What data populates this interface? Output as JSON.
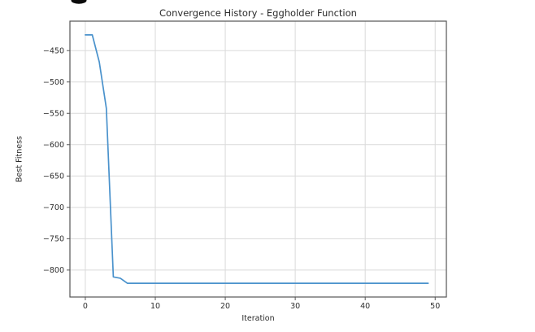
{
  "artifact": {
    "description": "black fragment of cut-off text at top edge",
    "color": "#0b0b0b"
  },
  "chart_data": {
    "type": "line",
    "title": "Convergence History - Eggholder Function",
    "xlabel": "Iteration",
    "ylabel": "Best Fitness",
    "x": [
      0,
      1,
      2,
      3,
      4,
      5,
      6,
      7,
      8,
      9,
      10,
      11,
      12,
      13,
      14,
      15,
      16,
      17,
      18,
      19,
      20,
      21,
      22,
      23,
      24,
      25,
      26,
      27,
      28,
      29,
      30,
      31,
      32,
      33,
      34,
      35,
      36,
      37,
      38,
      39,
      40,
      41,
      42,
      43,
      44,
      45,
      46,
      47,
      48,
      49
    ],
    "values": [
      -425,
      -425,
      -468,
      -542,
      -811,
      -813,
      -821,
      -821,
      -821,
      -821,
      -821,
      -821,
      -821,
      -821,
      -821,
      -821,
      -821,
      -821,
      -821,
      -821,
      -821,
      -821,
      -821,
      -821,
      -821,
      -821,
      -821,
      -821,
      -821,
      -821,
      -821,
      -821,
      -821,
      -821,
      -821,
      -821,
      -821,
      -821,
      -821,
      -821,
      -821,
      -821,
      -821,
      -821,
      -821,
      -821,
      -821,
      -821,
      -821,
      -821
    ],
    "xticks": [
      0,
      10,
      20,
      30,
      40,
      50
    ],
    "yticks": [
      -450,
      -500,
      -550,
      -600,
      -650,
      -700,
      -750,
      -800
    ],
    "xlim": [
      -2.2,
      51.6
    ],
    "ylim": [
      -843,
      -403
    ],
    "grid": true,
    "legend": "none",
    "line_color": "#4a92cc",
    "spine_color": "#555555",
    "grid_color": "#dadada",
    "tick_color": "#555555",
    "text_color": "#2e2e2e"
  }
}
